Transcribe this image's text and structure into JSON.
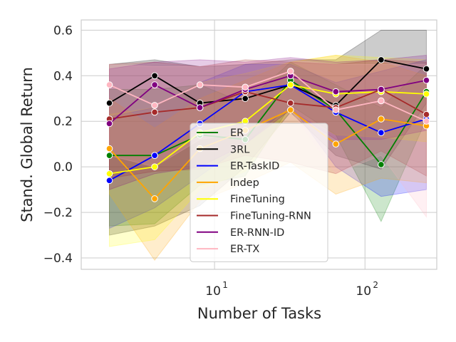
{
  "chart_data": {
    "type": "line",
    "xscale": "log",
    "xlabel": "Number of Tasks",
    "ylabel": "Stand. Global Return",
    "xlim": [
      1.3,
      300
    ],
    "ylim": [
      -0.45,
      0.645
    ],
    "x_ticks": [
      {
        "value": 10,
        "base": "10",
        "exp": "1"
      },
      {
        "value": 100,
        "base": "10",
        "exp": "2"
      }
    ],
    "y_ticks": [
      -0.4,
      -0.2,
      0.0,
      0.2,
      0.4,
      0.6
    ],
    "y_tick_labels": [
      "−0.4",
      "−0.2",
      "0.0",
      "0.2",
      "0.4",
      "0.6"
    ],
    "grid": true,
    "legend_position": "center",
    "x": [
      2,
      4,
      8,
      16,
      32,
      64,
      128,
      256
    ],
    "series": [
      {
        "name": "ER",
        "color": "#008000",
        "values": [
          0.05,
          0.05,
          0.14,
          0.12,
          0.38,
          0.25,
          0.01,
          0.33
        ],
        "lower": [
          -0.26,
          -0.25,
          -0.08,
          -0.04,
          0.27,
          0.14,
          -0.24,
          0.21
        ],
        "upper": [
          0.34,
          0.34,
          0.36,
          0.28,
          0.46,
          0.36,
          0.26,
          0.45
        ]
      },
      {
        "name": "3RL",
        "color": "#000000",
        "values": [
          0.28,
          0.4,
          0.28,
          0.3,
          0.36,
          0.27,
          0.47,
          0.43
        ],
        "lower": [
          -0.3,
          -0.26,
          -0.17,
          0.0,
          0.24,
          0.05,
          -0.01,
          0.28
        ],
        "upper": [
          0.45,
          0.47,
          0.44,
          0.45,
          0.47,
          0.47,
          0.6,
          0.6
        ]
      },
      {
        "name": "ER-TaskID",
        "color": "#0000ff",
        "values": [
          -0.06,
          0.05,
          0.19,
          0.33,
          0.36,
          0.24,
          0.15,
          0.21
        ],
        "lower": [
          -0.27,
          -0.18,
          -0.04,
          0.1,
          0.27,
          0.0,
          -0.13,
          -0.1
        ],
        "upper": [
          0.22,
          0.26,
          0.37,
          0.45,
          0.45,
          0.37,
          0.42,
          0.47
        ]
      },
      {
        "name": "Indep",
        "color": "#ffa500",
        "values": [
          0.08,
          -0.14,
          0.08,
          0.16,
          0.25,
          0.1,
          0.21,
          0.18
        ],
        "lower": [
          -0.12,
          -0.41,
          -0.15,
          -0.07,
          0.02,
          -0.12,
          -0.05,
          -0.07
        ],
        "upper": [
          0.3,
          0.17,
          0.3,
          0.38,
          0.46,
          0.49,
          0.46,
          0.4
        ]
      },
      {
        "name": "FineTuning",
        "color": "#ffff00",
        "values": [
          -0.03,
          0.0,
          0.15,
          0.2,
          0.36,
          0.32,
          0.33,
          0.32
        ],
        "lower": [
          -0.35,
          -0.32,
          -0.1,
          -0.02,
          0.25,
          0.14,
          0.13,
          0.11
        ],
        "upper": [
          0.23,
          0.26,
          0.37,
          0.41,
          0.46,
          0.49,
          0.48,
          0.47
        ]
      },
      {
        "name": "FineTuning-RNN",
        "color": "#a52a2a",
        "values": [
          0.21,
          0.24,
          0.26,
          0.33,
          0.28,
          0.26,
          0.34,
          0.23
        ],
        "lower": [
          -0.05,
          -0.02,
          -0.01,
          0.05,
          0.02,
          -0.03,
          0.07,
          -0.04
        ],
        "upper": [
          0.45,
          0.46,
          0.44,
          0.47,
          0.46,
          0.45,
          0.47,
          0.46
        ]
      },
      {
        "name": "ER-RNN-ID",
        "color": "#800080",
        "values": [
          0.19,
          0.36,
          0.26,
          0.34,
          0.4,
          0.33,
          0.34,
          0.38
        ],
        "lower": [
          -0.1,
          -0.03,
          0.0,
          0.1,
          0.25,
          0.12,
          0.12,
          0.16
        ],
        "upper": [
          0.43,
          0.46,
          0.47,
          0.46,
          0.48,
          0.46,
          0.47,
          0.49
        ]
      },
      {
        "name": "ER-TX",
        "color": "#ffb6c1",
        "values": [
          0.36,
          0.27,
          0.36,
          0.35,
          0.42,
          0.25,
          0.29,
          0.2
        ],
        "lower": [
          0.05,
          0.0,
          0.12,
          0.15,
          0.25,
          -0.03,
          0.05,
          -0.22
        ],
        "upper": [
          0.45,
          0.44,
          0.44,
          0.46,
          0.47,
          0.45,
          0.45,
          0.45
        ]
      }
    ]
  }
}
